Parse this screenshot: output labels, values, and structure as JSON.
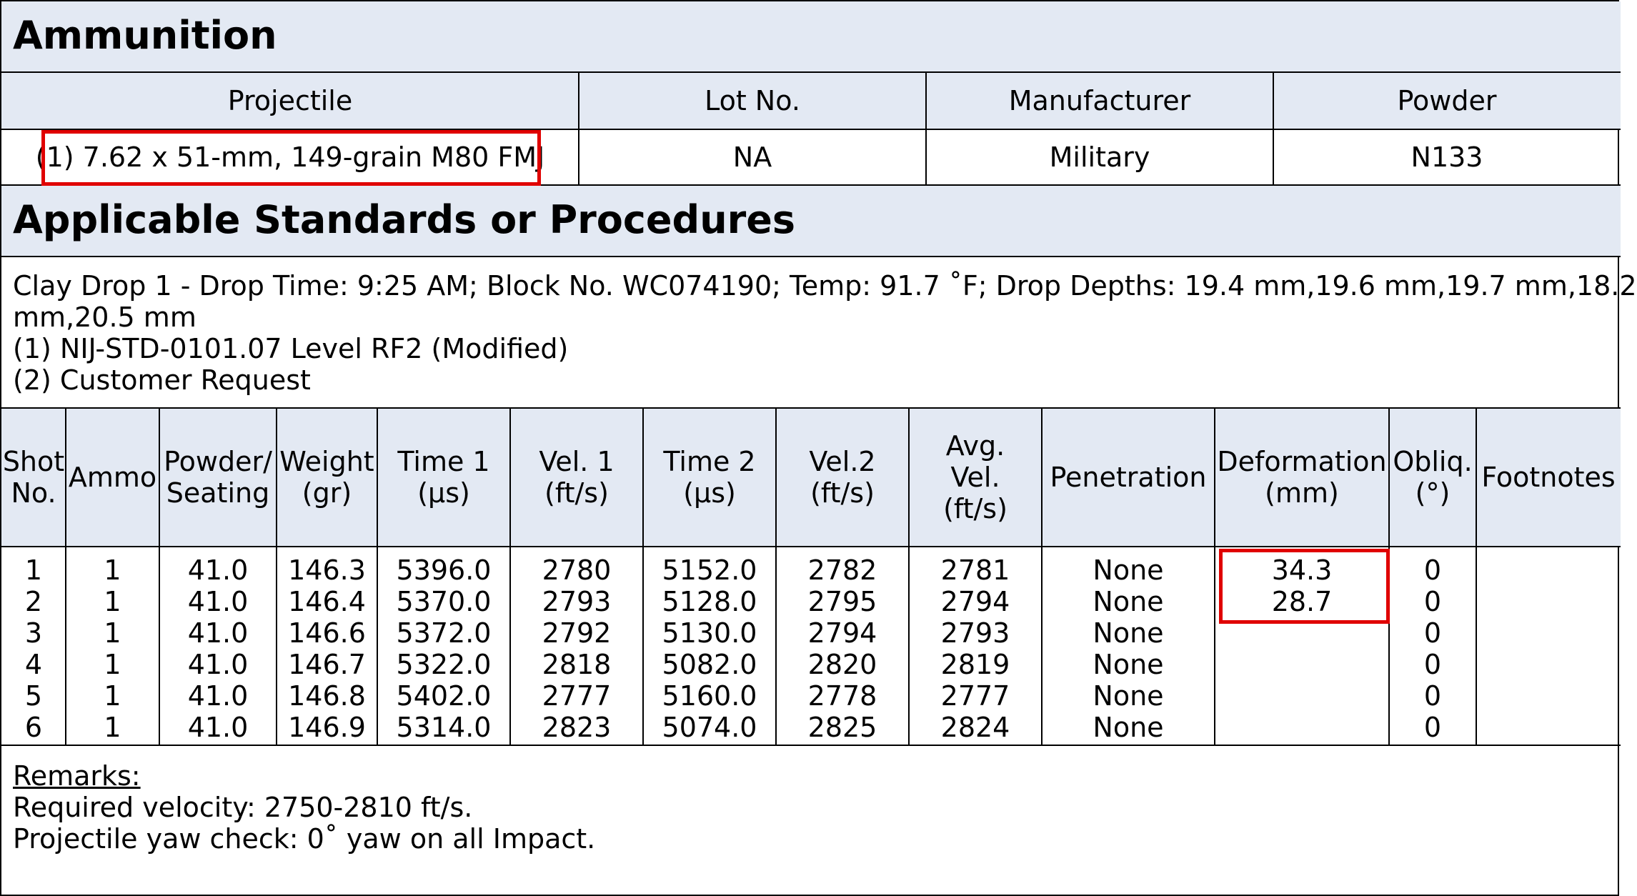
{
  "ammunition": {
    "title": "Ammunition",
    "headers": [
      "Projectile",
      "Lot No.",
      "Manufacturer",
      "Powder"
    ],
    "row": [
      "(1) 7.62 x 51-mm, 149-grain M80 FMJ",
      "NA",
      "Military",
      "N133"
    ]
  },
  "standards": {
    "title": "Applicable Standards or Procedures",
    "lines": [
      "Clay Drop 1 - Drop Time: 9:25 AM; Block No. WC074190; Temp: 91.7 ˚F; Drop Depths: 19.4 mm,19.6 mm,19.7 mm,18.2",
      "mm,20.5 mm",
      "(1) NIJ-STD-0101.07 Level RF2 (Modified)",
      "(2) Customer Request"
    ]
  },
  "shots": {
    "headers": [
      [
        "Shot",
        "No."
      ],
      [
        "Ammo"
      ],
      [
        "Powder/",
        "Seating"
      ],
      [
        "Weight",
        "(gr)"
      ],
      [
        "Time 1",
        "(µs)"
      ],
      [
        "Vel. 1",
        "(ft/s)"
      ],
      [
        "Time 2",
        "(µs)"
      ],
      [
        "Vel.2",
        "(ft/s)"
      ],
      [
        "Avg.",
        "Vel.",
        "(ft/s)"
      ],
      [
        "Penetration"
      ],
      [
        "Deformation",
        "(mm)"
      ],
      [
        "Obliq.",
        "(°)"
      ],
      [
        "Footnotes"
      ]
    ],
    "rows": [
      [
        "1",
        "1",
        "41.0",
        "146.3",
        "5396.0",
        "2780",
        "5152.0",
        "2782",
        "2781",
        "None",
        "34.3",
        "0",
        ""
      ],
      [
        "2",
        "1",
        "41.0",
        "146.4",
        "5370.0",
        "2793",
        "5128.0",
        "2795",
        "2794",
        "None",
        "28.7",
        "0",
        ""
      ],
      [
        "3",
        "1",
        "41.0",
        "146.6",
        "5372.0",
        "2792",
        "5130.0",
        "2794",
        "2793",
        "None",
        "",
        "0",
        ""
      ],
      [
        "4",
        "1",
        "41.0",
        "146.7",
        "5322.0",
        "2818",
        "5082.0",
        "2820",
        "2819",
        "None",
        "",
        "0",
        ""
      ],
      [
        "5",
        "1",
        "41.0",
        "146.8",
        "5402.0",
        "2777",
        "5160.0",
        "2778",
        "2777",
        "None",
        "",
        "0",
        ""
      ],
      [
        "6",
        "1",
        "41.0",
        "146.9",
        "5314.0",
        "2823",
        "5074.0",
        "2825",
        "2824",
        "None",
        "",
        "0",
        ""
      ]
    ]
  },
  "remarks": {
    "title": "Remarks:",
    "lines": [
      "Required velocity: 2750-2810 ft/s.",
      "Projectile yaw check: 0˚ yaw on all Impact."
    ]
  },
  "colors": {
    "header_bg": "#e3e9f3",
    "highlight": "#e00000"
  }
}
